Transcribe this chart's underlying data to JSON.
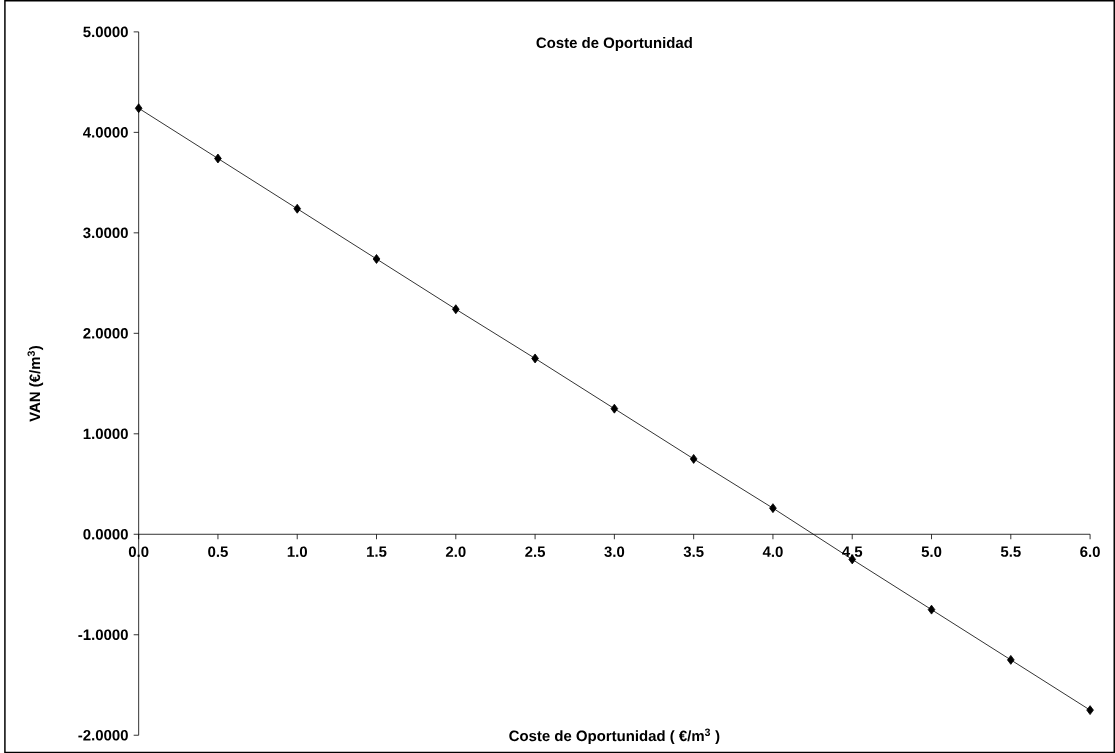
{
  "chart_data": {
    "type": "line",
    "title": "Coste de Oportunidad",
    "xlabel": "Coste de Oportunidad ( €/m$^{3}$ )",
    "ylabel": "VAN (€/m$^{3}$)",
    "x": [
      0,
      0.5,
      1.0,
      1.5,
      2.0,
      2.5,
      3.0,
      3.5,
      4.0,
      4.5,
      5.0,
      5.5,
      6.0
    ],
    "series": [
      {
        "color": "#000000",
        "values": [
          4.24,
          3.74,
          3.24,
          2.74,
          2.24,
          1.75,
          1.25,
          0.75,
          0.26,
          -0.25,
          -0.75,
          -1.25,
          -1.75
        ]
      }
    ],
    "marker": "diamond",
    "line_style": "solid",
    "xlim": [
      0,
      6
    ],
    "ylim": [
      -2,
      5
    ],
    "xticks": [
      {
        "value": 0,
        "label": "0.0"
      },
      {
        "value": 0.5,
        "label": "0.5"
      },
      {
        "value": 1,
        "label": "1.0"
      },
      {
        "value": 1.5,
        "label": "1.5"
      },
      {
        "value": 2,
        "label": "2.0"
      },
      {
        "value": 2.5,
        "label": "2.5"
      },
      {
        "value": 3,
        "label": "3.0"
      },
      {
        "value": 3.5,
        "label": "3.5"
      },
      {
        "value": 4,
        "label": "4.0"
      },
      {
        "value": 4.5,
        "label": "4.5"
      },
      {
        "value": 5,
        "label": "5.0"
      },
      {
        "value": 5.5,
        "label": "5.5"
      },
      {
        "value": 6,
        "label": "6.0"
      }
    ],
    "yticks": [
      {
        "value": -2,
        "label": "-2.0000"
      },
      {
        "value": -1,
        "label": "-1.0000"
      },
      {
        "value": 0,
        "label": "0.0000"
      },
      {
        "value": 1,
        "label": "1.0000"
      },
      {
        "value": 2,
        "label": "2.0000"
      },
      {
        "value": 3,
        "label": "3.0000"
      },
      {
        "value": 4,
        "label": "4.0000"
      },
      {
        "value": 5,
        "label": "5.0000"
      }
    ]
  }
}
